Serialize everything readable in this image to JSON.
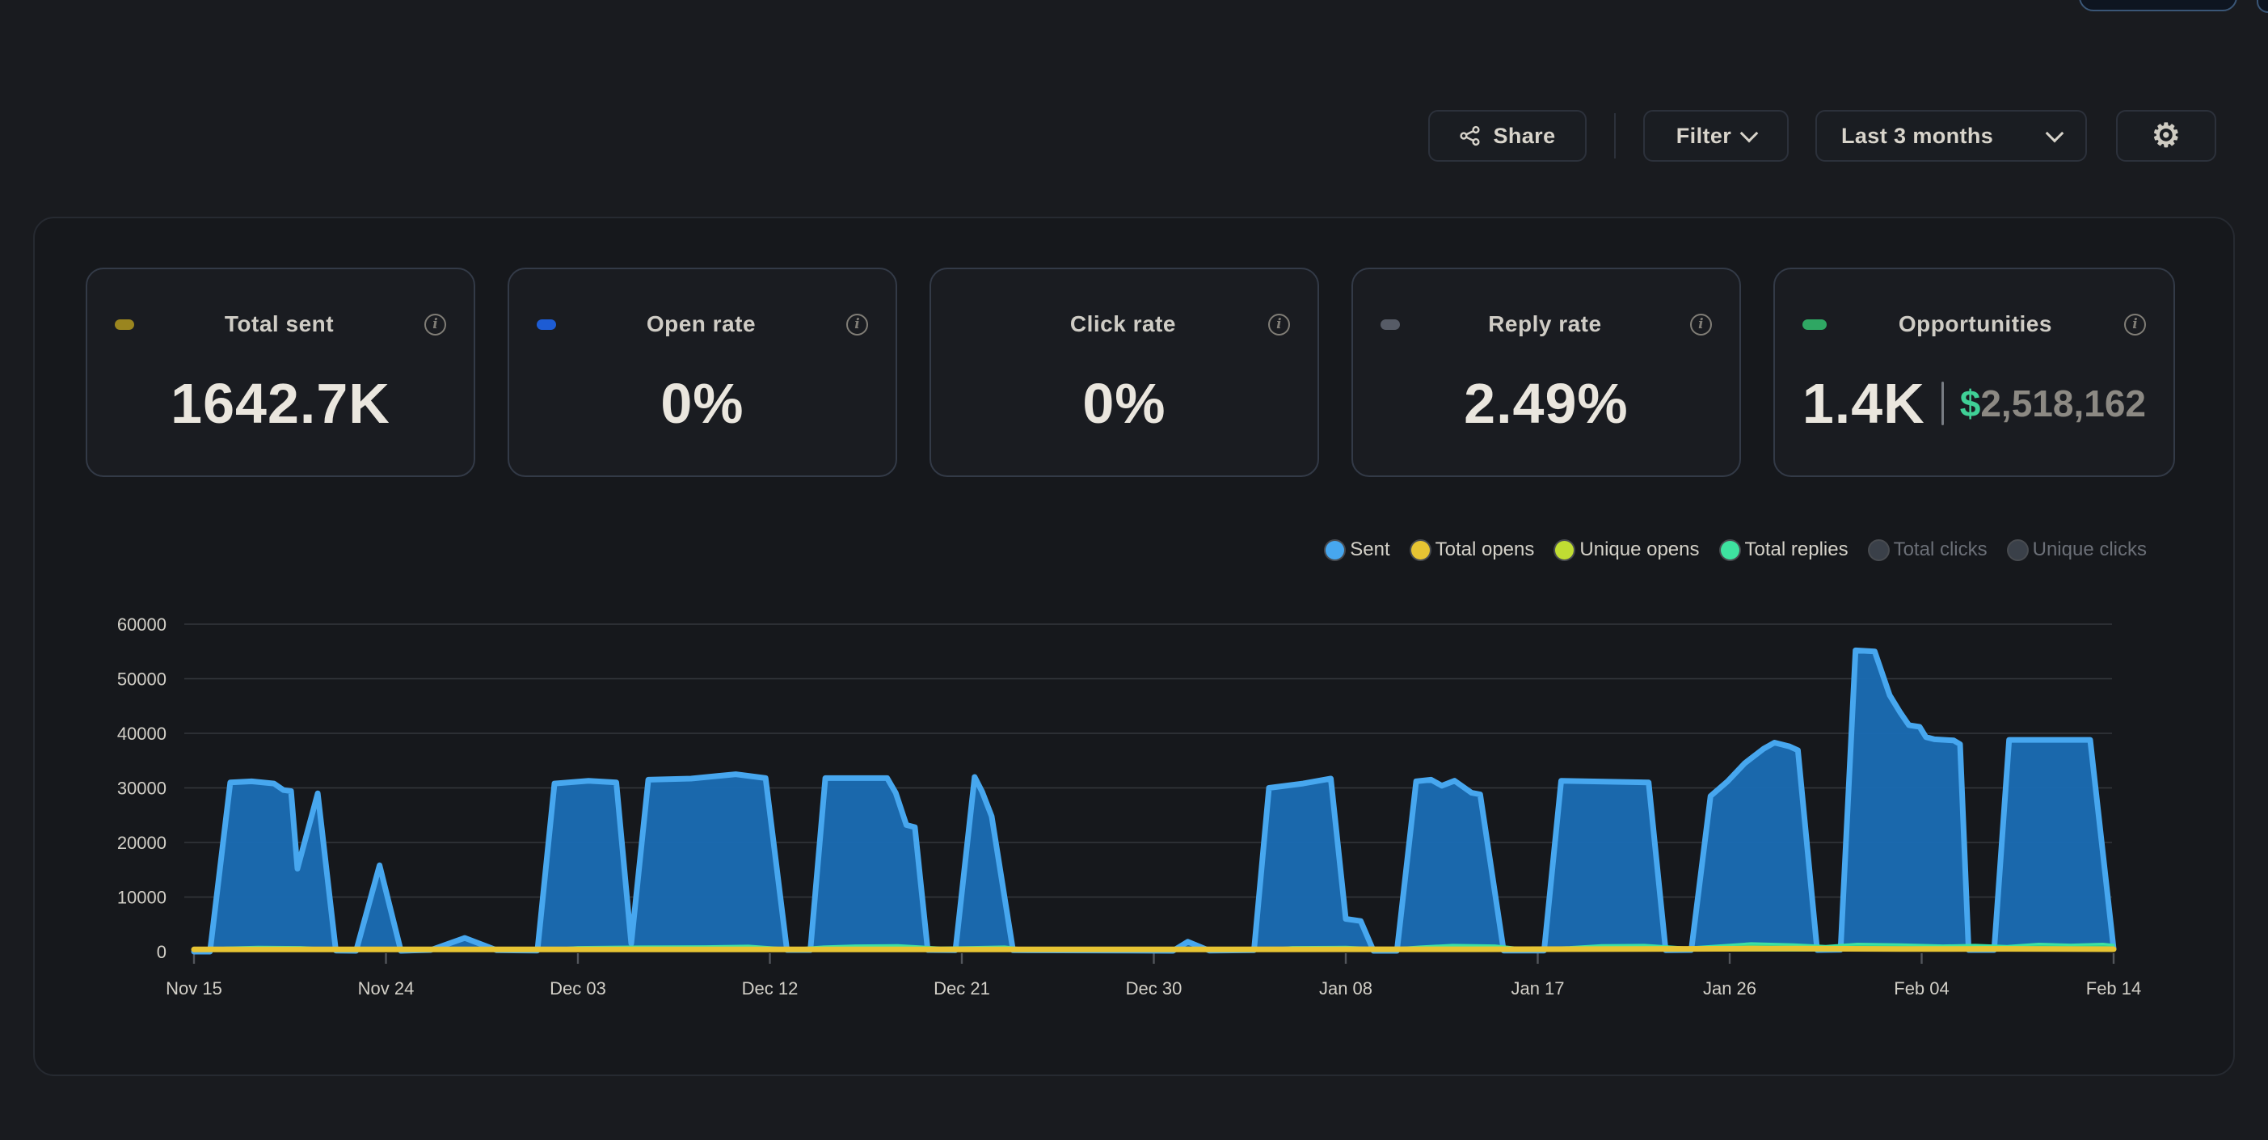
{
  "toolbar": {
    "share_label": "Share",
    "filter_label": "Filter",
    "date_range_value": "Last 3 months",
    "settings_icon": "gear-icon",
    "share_icon": "share-nodes-icon",
    "accent_border": "#2c313b"
  },
  "cards": [
    {
      "title": "Total sent",
      "value": "1642.7K",
      "dot_color": "#9a851f"
    },
    {
      "title": "Open rate",
      "value": "0%",
      "dot_color": "#1d5cd4"
    },
    {
      "title": "Click rate",
      "value": "0%",
      "dot_color": "transparent"
    },
    {
      "title": "Reply rate",
      "value": "2.49%",
      "dot_color": "#565b66"
    },
    {
      "title": "Opportunities",
      "value": "1.4K",
      "currency": "$",
      "amount": "2,518,162",
      "dot_color": "#2fa763"
    }
  ],
  "info_icon_glyph": "i",
  "legend": {
    "items": [
      {
        "label": "Sent",
        "color": "#47a7ef",
        "active": true
      },
      {
        "label": "Total opens",
        "color": "#e7c433",
        "active": true
      },
      {
        "label": "Unique opens",
        "color": "#c0dd33",
        "active": true
      },
      {
        "label": "Total replies",
        "color": "#3ee2a0",
        "active": true
      },
      {
        "label": "Total clicks",
        "color": "#3a4049",
        "active": false
      },
      {
        "label": "Unique clicks",
        "color": "#3a4049",
        "active": false
      }
    ]
  },
  "chart_data": {
    "type": "area",
    "grid": true,
    "legend_position": "top-right",
    "colors": {
      "gridline": "#34373c",
      "tick": "#53565c",
      "axis_text": "#d2cfc7"
    },
    "x_axis": {
      "labels": [
        "Nov 15",
        "Nov 24",
        "Dec 03",
        "Dec 12",
        "Dec 21",
        "Dec 30",
        "Jan 08",
        "Jan 17",
        "Jan 26",
        "Feb 04",
        "Feb 14"
      ],
      "label_days": [
        0,
        9,
        18,
        27,
        36,
        45,
        54,
        63,
        72,
        81,
        90
      ],
      "max_day": 90
    },
    "y_axis": {
      "ticks": [
        0,
        10000,
        20000,
        30000,
        40000,
        50000,
        60000
      ],
      "max": 60000
    },
    "series": [
      {
        "name": "Sent",
        "color": "#47a7ef",
        "fill": "#1b6bb2",
        "fill_opacity": 0.97,
        "line_width": 7,
        "points": [
          [
            0,
            0
          ],
          [
            0.75,
            0
          ],
          [
            1.7,
            31000
          ],
          [
            2.7,
            31200
          ],
          [
            3.75,
            30800
          ],
          [
            4.2,
            29600
          ],
          [
            4.55,
            29400
          ],
          [
            4.85,
            15200
          ],
          [
            5.8,
            29000
          ],
          [
            6.65,
            200
          ],
          [
            7.6,
            150
          ],
          [
            8.7,
            15800
          ],
          [
            9.7,
            150
          ],
          [
            11.1,
            300
          ],
          [
            12.7,
            2500
          ],
          [
            14.2,
            250
          ],
          [
            16.1,
            200
          ],
          [
            16.9,
            30800
          ],
          [
            18.5,
            31300
          ],
          [
            19.8,
            31000
          ],
          [
            20.5,
            1500
          ],
          [
            21.3,
            31500
          ],
          [
            23.3,
            31700
          ],
          [
            25.4,
            32500
          ],
          [
            26.8,
            31800
          ],
          [
            27.8,
            300
          ],
          [
            28.9,
            300
          ],
          [
            29.6,
            31800
          ],
          [
            32.5,
            31800
          ],
          [
            32.9,
            29100
          ],
          [
            33.4,
            23200
          ],
          [
            33.8,
            22800
          ],
          [
            34.4,
            300
          ],
          [
            35.7,
            250
          ],
          [
            36.6,
            32000
          ],
          [
            36.95,
            29300
          ],
          [
            37.4,
            24800
          ],
          [
            38.4,
            250
          ],
          [
            45.9,
            150
          ],
          [
            46.6,
            1800
          ],
          [
            47.6,
            200
          ],
          [
            49.7,
            250
          ],
          [
            50.4,
            30000
          ],
          [
            52,
            30800
          ],
          [
            53.3,
            31700
          ],
          [
            54,
            6000
          ],
          [
            54.7,
            5600
          ],
          [
            55.3,
            150
          ],
          [
            56.4,
            150
          ],
          [
            57.3,
            31200
          ],
          [
            58,
            31500
          ],
          [
            58.5,
            30400
          ],
          [
            59.1,
            31300
          ],
          [
            59.9,
            29100
          ],
          [
            60.3,
            28800
          ],
          [
            61.4,
            200
          ],
          [
            63.3,
            200
          ],
          [
            64.1,
            31300
          ],
          [
            68.2,
            31000
          ],
          [
            69,
            250
          ],
          [
            70.2,
            300
          ],
          [
            71.1,
            28500
          ],
          [
            71.9,
            31200
          ],
          [
            72.7,
            34500
          ],
          [
            73.6,
            37200
          ],
          [
            74.1,
            38300
          ],
          [
            74.8,
            37600
          ],
          [
            75.2,
            36900
          ],
          [
            76.1,
            300
          ],
          [
            77.2,
            350
          ],
          [
            77.9,
            55200
          ],
          [
            78.8,
            55000
          ],
          [
            79.5,
            47000
          ],
          [
            80,
            43800
          ],
          [
            80.4,
            41500
          ],
          [
            80.9,
            41200
          ],
          [
            81.2,
            39300
          ],
          [
            81.6,
            38900
          ],
          [
            82.5,
            38700
          ],
          [
            82.8,
            38000
          ],
          [
            83.2,
            300
          ],
          [
            84.4,
            300
          ],
          [
            85.1,
            38800
          ],
          [
            88.9,
            38800
          ],
          [
            90,
            500
          ]
        ]
      },
      {
        "name": "Total replies",
        "color": "#3ee2a0",
        "fill": "#32d893",
        "fill_opacity": 0.95,
        "line_width": 3,
        "points": [
          [
            0,
            250
          ],
          [
            1.5,
            700
          ],
          [
            3,
            850
          ],
          [
            5,
            800
          ],
          [
            7,
            350
          ],
          [
            9,
            300
          ],
          [
            11,
            250
          ],
          [
            14,
            200
          ],
          [
            16,
            300
          ],
          [
            18,
            800
          ],
          [
            21,
            900
          ],
          [
            24,
            950
          ],
          [
            26,
            1050
          ],
          [
            28,
            500
          ],
          [
            29.5,
            900
          ],
          [
            31,
            1100
          ],
          [
            33,
            1150
          ],
          [
            35,
            700
          ],
          [
            36.5,
            800
          ],
          [
            38,
            900
          ],
          [
            39.5,
            300
          ],
          [
            43,
            200
          ],
          [
            46,
            350
          ],
          [
            48,
            400
          ],
          [
            50,
            350
          ],
          [
            51.5,
            800
          ],
          [
            54,
            850
          ],
          [
            56,
            500
          ],
          [
            57.5,
            900
          ],
          [
            59,
            1200
          ],
          [
            61,
            1100
          ],
          [
            62.5,
            500
          ],
          [
            64.5,
            800
          ],
          [
            66,
            1150
          ],
          [
            68,
            1200
          ],
          [
            70,
            700
          ],
          [
            71.5,
            1100
          ],
          [
            73,
            1500
          ],
          [
            75,
            1300
          ],
          [
            76.5,
            1000
          ],
          [
            78,
            1400
          ],
          [
            80,
            1300
          ],
          [
            82,
            1100
          ],
          [
            83.5,
            1200
          ],
          [
            85,
            1000
          ],
          [
            86.5,
            1400
          ],
          [
            88,
            1250
          ],
          [
            89.5,
            1400
          ],
          [
            90,
            1200
          ]
        ]
      },
      {
        "name": "Unique opens",
        "color": "#c0dd33",
        "fill": null,
        "fill_opacity": 0,
        "line_width": 4,
        "points": [
          [
            0,
            300
          ],
          [
            10,
            350
          ],
          [
            20,
            400
          ],
          [
            30,
            450
          ],
          [
            40,
            300
          ],
          [
            50,
            350
          ],
          [
            60,
            400
          ],
          [
            70,
            500
          ],
          [
            73,
            800
          ],
          [
            76,
            600
          ],
          [
            80,
            500
          ],
          [
            84,
            700
          ],
          [
            87,
            650
          ],
          [
            90,
            500
          ]
        ]
      },
      {
        "name": "Total opens",
        "color": "#e7c433",
        "fill": null,
        "fill_opacity": 0,
        "line_width": 7,
        "points": [
          [
            0,
            400
          ],
          [
            20,
            420
          ],
          [
            40,
            400
          ],
          [
            60,
            430
          ],
          [
            70,
            500
          ],
          [
            75,
            550
          ],
          [
            80,
            480
          ],
          [
            85,
            500
          ],
          [
            90,
            450
          ]
        ]
      }
    ]
  }
}
